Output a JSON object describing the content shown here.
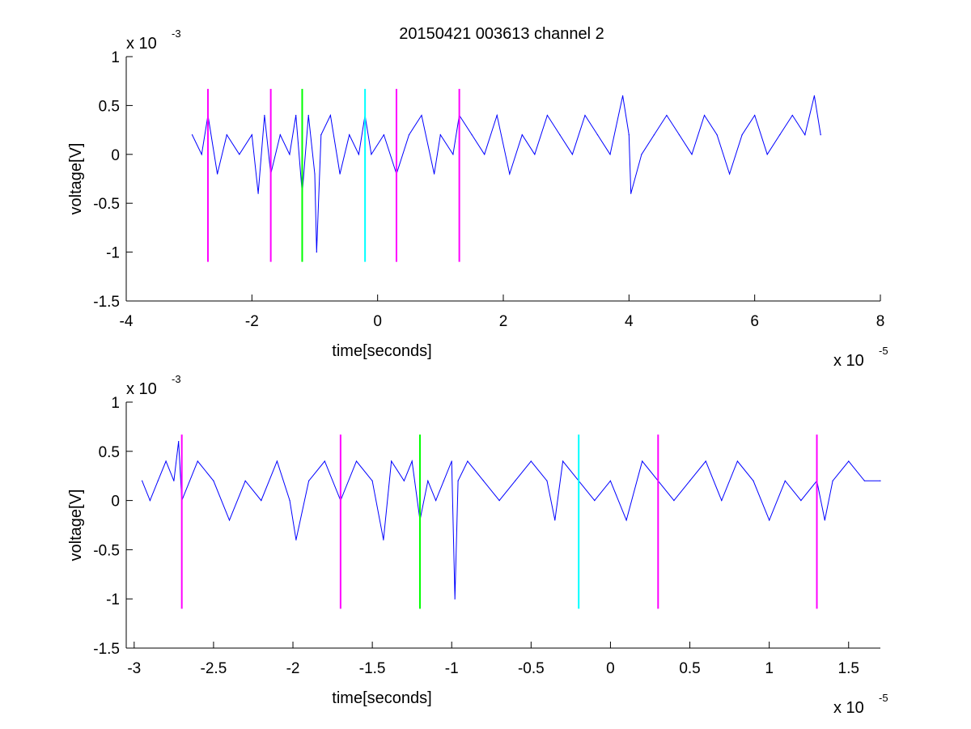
{
  "figure": {
    "title": "20150421 003613 channel 2"
  },
  "chart_data": [
    {
      "type": "line",
      "title": "20150421 003613 channel 2",
      "xlabel": "time[seconds]",
      "ylabel": "voltage[V]",
      "x_multiplier": {
        "base": "x 10",
        "exp": "-5"
      },
      "y_multiplier": {
        "base": "x 10",
        "exp": "-3"
      },
      "xlim": [
        -4,
        8
      ],
      "ylim": [
        -1.5,
        1
      ],
      "x_ticks": [
        -4,
        -2,
        0,
        2,
        4,
        6,
        8
      ],
      "x_tick_labels": [
        "-4",
        "-2",
        "0",
        "2",
        "4",
        "6",
        "8"
      ],
      "y_ticks": [
        -1.5,
        -1,
        -0.5,
        0,
        0.5,
        1
      ],
      "y_tick_labels": [
        "-1.5",
        "-1",
        "-0.5",
        "0",
        "0.5",
        "1"
      ],
      "grid": false,
      "series": [
        {
          "color": "#0000ff",
          "x": [
            -2.95,
            -2.8,
            -2.7,
            -2.55,
            -2.4,
            -2.2,
            -2.0,
            -1.9,
            -1.8,
            -1.7,
            -1.55,
            -1.4,
            -1.3,
            -1.2,
            -1.1,
            -1.0,
            -0.97,
            -0.9,
            -0.75,
            -0.6,
            -0.45,
            -0.3,
            -0.2,
            -0.1,
            0.1,
            0.3,
            0.5,
            0.7,
            0.9,
            1.0,
            1.2,
            1.3,
            1.5,
            1.7,
            1.9,
            2.1,
            2.3,
            2.5,
            2.7,
            2.9,
            3.1,
            3.3,
            3.5,
            3.7,
            3.9,
            4.0,
            4.03,
            4.2,
            4.4,
            4.6,
            4.8,
            5.0,
            5.2,
            5.4,
            5.6,
            5.8,
            6.0,
            6.2,
            6.4,
            6.6,
            6.8,
            6.95,
            7.05
          ],
          "y": [
            0.2,
            0.0,
            0.4,
            -0.2,
            0.2,
            0.0,
            0.2,
            -0.4,
            0.4,
            -0.2,
            0.2,
            0.0,
            0.4,
            -0.4,
            0.4,
            -0.2,
            -1.0,
            0.2,
            0.4,
            -0.2,
            0.2,
            0.0,
            0.4,
            0.0,
            0.2,
            -0.2,
            0.2,
            0.4,
            -0.2,
            0.2,
            0.0,
            0.4,
            0.2,
            0.0,
            0.4,
            -0.2,
            0.2,
            0.0,
            0.4,
            0.2,
            0.0,
            0.4,
            0.2,
            0.0,
            0.6,
            0.2,
            -0.4,
            0.0,
            0.2,
            0.4,
            0.2,
            0.0,
            0.4,
            0.2,
            -0.2,
            0.2,
            0.4,
            0.0,
            0.2,
            0.4,
            0.2,
            0.6,
            0.2
          ]
        }
      ],
      "markers": [
        {
          "x": -2.7,
          "color": "#ff00ff",
          "y_range": [
            -1.1,
            0.67
          ]
        },
        {
          "x": -1.7,
          "color": "#ff00ff",
          "y_range": [
            -1.1,
            0.67
          ]
        },
        {
          "x": -1.2,
          "color": "#00ff00",
          "y_range": [
            -1.1,
            0.67
          ]
        },
        {
          "x": -0.2,
          "color": "#00ffff",
          "y_range": [
            -1.1,
            0.67
          ]
        },
        {
          "x": 0.3,
          "color": "#ff00ff",
          "y_range": [
            -1.1,
            0.67
          ]
        },
        {
          "x": 1.3,
          "color": "#ff00ff",
          "y_range": [
            -1.1,
            0.67
          ]
        }
      ]
    },
    {
      "type": "line",
      "title": "",
      "xlabel": "time[seconds]",
      "ylabel": "voltage[V]",
      "x_multiplier": {
        "base": "x 10",
        "exp": "-5"
      },
      "y_multiplier": {
        "base": "x 10",
        "exp": "-3"
      },
      "xlim": [
        -3.05,
        1.7
      ],
      "ylim": [
        -1.5,
        1
      ],
      "x_ticks": [
        -3,
        -2.5,
        -2,
        -1.5,
        -1,
        -0.5,
        0,
        0.5,
        1,
        1.5
      ],
      "x_tick_labels": [
        "-3",
        "-2.5",
        "-2",
        "-1.5",
        "-1",
        "-0.5",
        "0",
        "0.5",
        "1",
        "1.5"
      ],
      "y_ticks": [
        -1.5,
        -1,
        -0.5,
        0,
        0.5,
        1
      ],
      "y_tick_labels": [
        "-1.5",
        "-1",
        "-0.5",
        "0",
        "0.5",
        "1"
      ],
      "grid": false,
      "series": [
        {
          "color": "#0000ff",
          "x": [
            -2.95,
            -2.9,
            -2.85,
            -2.8,
            -2.75,
            -2.72,
            -2.7,
            -2.6,
            -2.5,
            -2.4,
            -2.3,
            -2.2,
            -2.1,
            -2.02,
            -1.98,
            -1.9,
            -1.8,
            -1.7,
            -1.6,
            -1.5,
            -1.43,
            -1.38,
            -1.3,
            -1.25,
            -1.2,
            -1.15,
            -1.1,
            -1.05,
            -1.0,
            -0.98,
            -0.96,
            -0.9,
            -0.8,
            -0.7,
            -0.6,
            -0.5,
            -0.4,
            -0.35,
            -0.3,
            -0.2,
            -0.1,
            0.0,
            0.1,
            0.2,
            0.3,
            0.4,
            0.5,
            0.6,
            0.7,
            0.8,
            0.9,
            1.0,
            1.1,
            1.2,
            1.3,
            1.35,
            1.4,
            1.5,
            1.6,
            1.7
          ],
          "y": [
            0.2,
            0.0,
            0.2,
            0.4,
            0.2,
            0.6,
            0.0,
            0.4,
            0.2,
            -0.2,
            0.2,
            0.0,
            0.4,
            0.0,
            -0.4,
            0.2,
            0.4,
            0.0,
            0.4,
            0.2,
            -0.4,
            0.4,
            0.2,
            0.4,
            -0.2,
            0.2,
            0.0,
            0.2,
            0.4,
            -1.0,
            0.2,
            0.4,
            0.2,
            0.0,
            0.2,
            0.4,
            0.2,
            -0.2,
            0.4,
            0.2,
            0.0,
            0.2,
            -0.2,
            0.4,
            0.2,
            0.0,
            0.2,
            0.4,
            0.0,
            0.4,
            0.2,
            -0.2,
            0.2,
            0.0,
            0.2,
            -0.2,
            0.2,
            0.4,
            0.2,
            0.2
          ]
        }
      ],
      "markers": [
        {
          "x": -2.7,
          "color": "#ff00ff",
          "y_range": [
            -1.1,
            0.67
          ]
        },
        {
          "x": -1.7,
          "color": "#ff00ff",
          "y_range": [
            -1.1,
            0.67
          ]
        },
        {
          "x": -1.2,
          "color": "#00ff00",
          "y_range": [
            -1.1,
            0.67
          ]
        },
        {
          "x": -0.2,
          "color": "#00ffff",
          "y_range": [
            -1.1,
            0.67
          ]
        },
        {
          "x": 0.3,
          "color": "#ff00ff",
          "y_range": [
            -1.1,
            0.67
          ]
        },
        {
          "x": 1.3,
          "color": "#ff00ff",
          "y_range": [
            -1.1,
            0.67
          ]
        }
      ]
    }
  ]
}
